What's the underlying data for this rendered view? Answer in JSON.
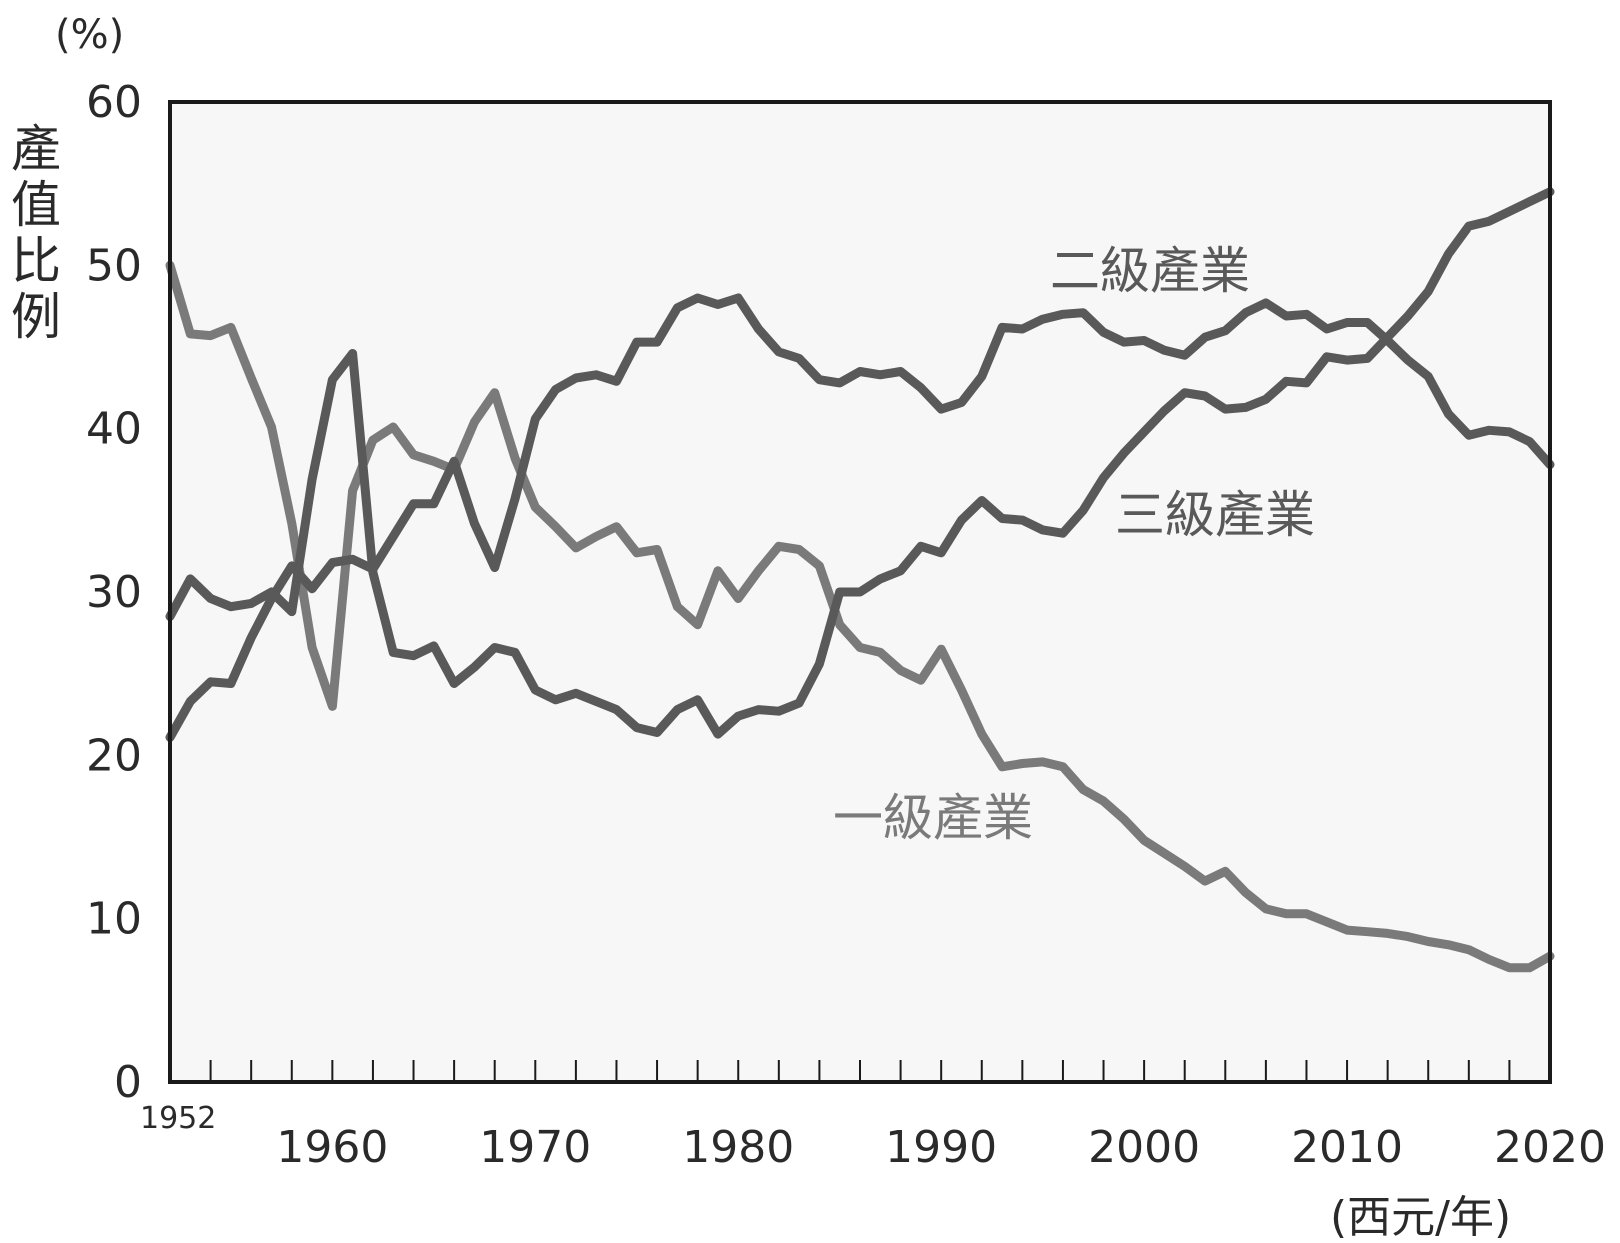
{
  "chart_data": {
    "type": "line",
    "y_unit": "(%)",
    "ylabel": "產值比例",
    "x_unit": "(西元/年)",
    "first_year_label": "1952",
    "ylim": [
      0,
      60
    ],
    "xlim": [
      1952,
      2020
    ],
    "yticks": [
      0,
      10,
      20,
      30,
      40,
      50,
      60
    ],
    "xtick_labels": [
      1960,
      1970,
      1980,
      1990,
      2000,
      2010,
      2020
    ],
    "grid": false,
    "series": [
      {
        "name": "一級產業",
        "color": "#7a7a7a",
        "x": [
          1952,
          1953,
          1954,
          1955,
          1956,
          1957,
          1958,
          1959,
          1960,
          1961,
          1962,
          1963,
          1964,
          1965,
          1966,
          1967,
          1968,
          1969,
          1970,
          1971,
          1972,
          1973,
          1974,
          1975,
          1976,
          1977,
          1978,
          1979,
          1980,
          1981,
          1982,
          1983,
          1984,
          1985,
          1986,
          1987,
          1988,
          1989,
          1990,
          1991,
          1992,
          1993,
          1994,
          1995,
          1996,
          1997,
          1998,
          1999,
          2000,
          2001,
          2002,
          2003,
          2004,
          2005,
          2006,
          2007,
          2008,
          2009,
          2010,
          2011,
          2012,
          2013,
          2014,
          2015,
          2016,
          2017,
          2018,
          2019,
          2020
        ],
        "values": [
          50.0,
          45.8,
          45.7,
          46.2,
          43.1,
          40.1,
          34.2,
          26.6,
          23.0,
          36.2,
          39.3,
          40.1,
          38.4,
          38.0,
          37.5,
          40.4,
          42.2,
          38.2,
          35.2,
          34.0,
          32.7,
          33.4,
          34.0,
          32.4,
          32.6,
          29.1,
          28.0,
          31.3,
          29.6,
          31.3,
          32.8,
          32.6,
          31.6,
          28.0,
          26.6,
          26.3,
          25.2,
          24.6,
          26.5,
          24.0,
          21.3,
          19.3,
          19.5,
          19.6,
          19.3,
          17.9,
          17.2,
          16.1,
          14.8,
          14.0,
          13.2,
          12.3,
          12.9,
          11.6,
          10.6,
          10.3,
          10.3,
          9.8,
          9.3,
          9.2,
          9.1,
          8.9,
          8.6,
          8.4,
          8.1,
          7.5,
          7.0,
          7.0,
          7.7
        ]
      },
      {
        "name": "二級產業",
        "color": "#595959",
        "x": [
          1952,
          1953,
          1954,
          1955,
          1956,
          1957,
          1958,
          1959,
          1960,
          1961,
          1962,
          1963,
          1964,
          1965,
          1966,
          1967,
          1968,
          1969,
          1970,
          1971,
          1972,
          1973,
          1974,
          1975,
          1976,
          1977,
          1978,
          1979,
          1980,
          1981,
          1982,
          1983,
          1984,
          1985,
          1986,
          1987,
          1988,
          1989,
          1990,
          1991,
          1992,
          1993,
          1994,
          1995,
          1996,
          1997,
          1998,
          1999,
          2000,
          2001,
          2002,
          2003,
          2004,
          2005,
          2006,
          2007,
          2008,
          2009,
          2010,
          2011,
          2012,
          2013,
          2014,
          2015,
          2016,
          2017,
          2018,
          2019,
          2020
        ],
        "values": [
          28.5,
          30.8,
          29.6,
          29.1,
          29.3,
          30.0,
          28.8,
          36.9,
          43.0,
          44.6,
          31.2,
          26.3,
          26.1,
          26.7,
          24.4,
          25.4,
          26.6,
          26.3,
          24.0,
          23.4,
          23.8,
          23.3,
          22.8,
          21.7,
          21.4,
          22.8,
          23.4,
          21.3,
          22.4,
          22.8,
          22.7,
          23.2,
          25.6,
          30.0,
          30.0,
          30.8,
          31.3,
          32.8,
          32.4,
          34.4,
          35.6,
          34.5,
          34.4,
          33.8,
          33.6,
          35.0,
          37.0,
          38.5,
          39.8,
          41.1,
          42.2,
          42.0,
          41.2,
          41.3,
          41.8,
          42.9,
          42.8,
          44.4,
          44.2,
          44.3,
          45.6,
          46.9,
          48.4,
          50.7,
          52.4,
          52.7,
          53.3,
          53.9,
          54.5
        ]
      },
      {
        "name": "三級產業",
        "color": "#595959",
        "x": [
          1952,
          1953,
          1954,
          1955,
          1956,
          1957,
          1958,
          1959,
          1960,
          1961,
          1962,
          1963,
          1964,
          1965,
          1966,
          1967,
          1968,
          1969,
          1970,
          1971,
          1972,
          1973,
          1974,
          1975,
          1976,
          1977,
          1978,
          1979,
          1980,
          1981,
          1982,
          1983,
          1984,
          1985,
          1986,
          1987,
          1988,
          1989,
          1990,
          1991,
          1992,
          1993,
          1994,
          1995,
          1996,
          1997,
          1998,
          1999,
          2000,
          2001,
          2002,
          2003,
          2004,
          2005,
          2006,
          2007,
          2008,
          2009,
          2010,
          2011,
          2012,
          2013,
          2014,
          2015,
          2016,
          2017,
          2018,
          2019,
          2020
        ],
        "values": [
          21.1,
          23.3,
          24.5,
          24.4,
          27.2,
          29.6,
          31.6,
          30.2,
          31.8,
          32.0,
          31.4,
          33.4,
          35.4,
          35.4,
          38.0,
          34.2,
          31.5,
          35.7,
          40.6,
          42.4,
          43.1,
          43.3,
          42.9,
          45.3,
          45.3,
          47.4,
          48.0,
          47.6,
          48.0,
          46.1,
          44.7,
          44.3,
          43.0,
          42.8,
          43.5,
          43.3,
          43.5,
          42.5,
          41.2,
          41.6,
          43.2,
          46.2,
          46.1,
          46.7,
          47.0,
          47.1,
          45.9,
          45.3,
          45.4,
          44.8,
          44.5,
          45.6,
          46.0,
          47.1,
          47.7,
          46.9,
          47.0,
          46.1,
          46.5,
          46.5,
          45.4,
          44.2,
          43.2,
          40.9,
          39.6,
          39.9,
          39.8,
          39.2,
          37.8
        ]
      }
    ]
  }
}
